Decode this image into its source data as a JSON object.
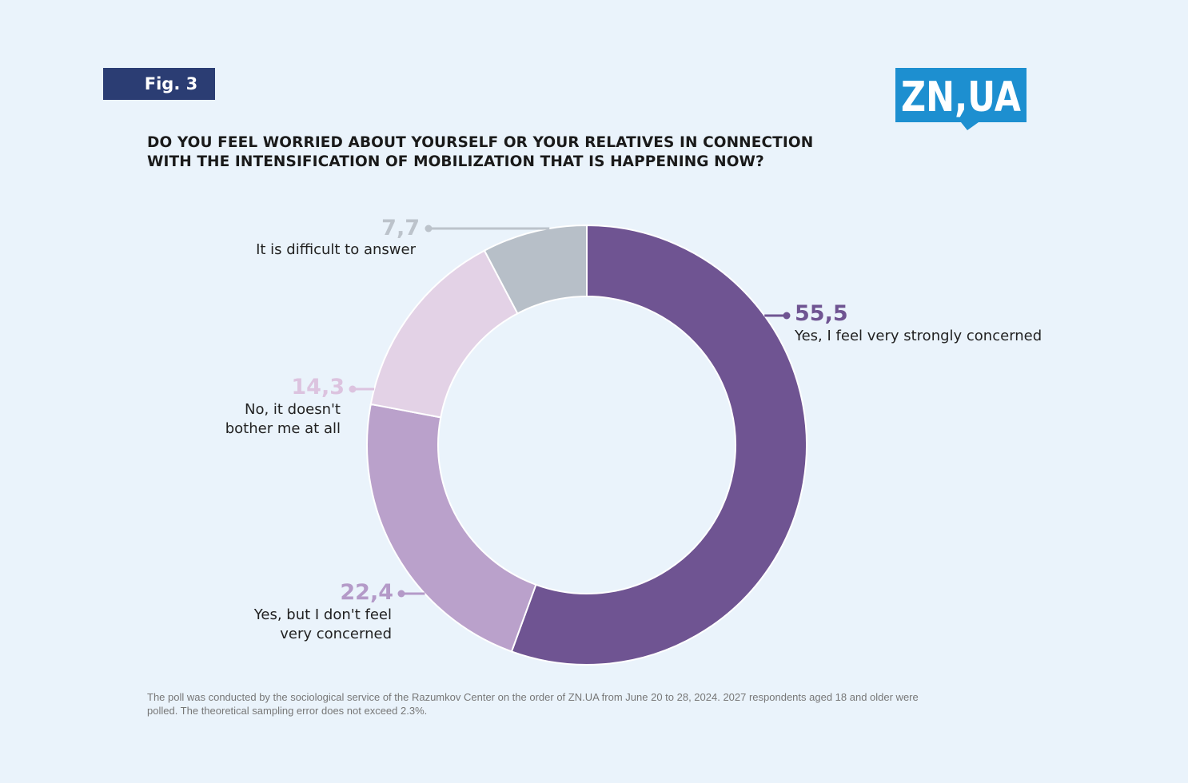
{
  "figure_label": "Fig. 3",
  "logo": {
    "text": "ZN,UA",
    "color": "#1d8fd0"
  },
  "title_lines": [
    "DO YOU FEEL WORRIED ABOUT YOURSELF OR YOUR RELATIVES IN CONNECTION",
    "WITH THE INTENSIFICATION OF MOBILIZATION THAT IS HAPPENING NOW?"
  ],
  "chart_data": {
    "type": "pie",
    "variant": "donut",
    "start": "12 o'clock",
    "direction": "clockwise",
    "slices": [
      {
        "value": 55.5,
        "value_label": "55,5",
        "label_lines": [
          "Yes, I feel very strongly concerned"
        ],
        "color": "#6f5492",
        "label_color": "#6f5492",
        "side": "right"
      },
      {
        "value": 22.4,
        "value_label": "22,4",
        "label_lines": [
          "Yes, but I don't feel",
          "very concerned"
        ],
        "color": "#baa1cb",
        "label_color": "#b49ac8",
        "side": "left"
      },
      {
        "value": 14.3,
        "value_label": "14,3",
        "label_lines": [
          "No, it doesn't",
          "bother me at all"
        ],
        "color": "#e3d2e6",
        "label_color": "#dcc3df",
        "side": "left"
      },
      {
        "value": 7.7,
        "value_label": "7,7",
        "label_lines": [
          "It is difficult to answer"
        ],
        "color": "#b7bfc8",
        "label_color": "#bcc3cb",
        "side": "left"
      }
    ]
  },
  "footnote_lines": [
    "The poll was conducted by the sociological service of the Razumkov Center on the order of ZN.UA from June 20 to 28, 2024. 2027 respondents aged 18 and older were",
    "polled. The theoretical sampling error does not exceed 2.3%."
  ]
}
